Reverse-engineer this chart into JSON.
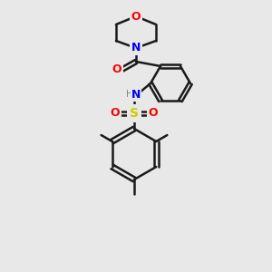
{
  "background_color": "#e8e8e8",
  "bond_color": "#1a1a1a",
  "atom_colors": {
    "O": "#ff0000",
    "N": "#0000ff",
    "S": "#cccc00",
    "C": "#1a1a1a",
    "H": "#808080"
  },
  "figsize": [
    3.0,
    3.0
  ],
  "dpi": 100
}
